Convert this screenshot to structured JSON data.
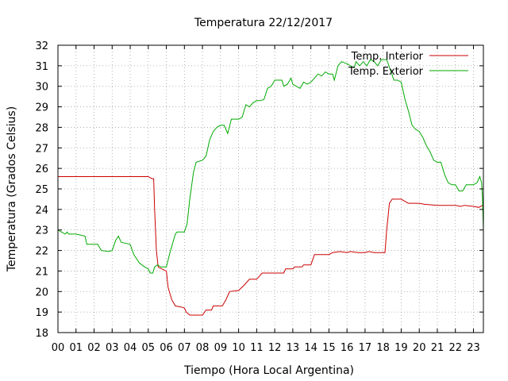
{
  "chart_data": {
    "type": "line",
    "title": "Temperatura 22/12/2017",
    "xlabel": "Tiempo (Hora Local Argentina)",
    "ylabel": "Temperatura (Grados Celsius)",
    "xlim": [
      0,
      23.55
    ],
    "ylim": [
      18,
      32
    ],
    "grid": true,
    "legend_position": "top-right",
    "x_ticks": [
      {
        "value": 0,
        "label": "00"
      },
      {
        "value": 1,
        "label": "01"
      },
      {
        "value": 2,
        "label": "02"
      },
      {
        "value": 3,
        "label": "03"
      },
      {
        "value": 4,
        "label": "04"
      },
      {
        "value": 5,
        "label": "05"
      },
      {
        "value": 6,
        "label": "06"
      },
      {
        "value": 7,
        "label": "07"
      },
      {
        "value": 8,
        "label": "08"
      },
      {
        "value": 9,
        "label": "09"
      },
      {
        "value": 10,
        "label": "10"
      },
      {
        "value": 11,
        "label": "11"
      },
      {
        "value": 12,
        "label": "12"
      },
      {
        "value": 13,
        "label": "13"
      },
      {
        "value": 14,
        "label": "14"
      },
      {
        "value": 15,
        "label": "15"
      },
      {
        "value": 16,
        "label": "16"
      },
      {
        "value": 17,
        "label": "17"
      },
      {
        "value": 18,
        "label": "18"
      },
      {
        "value": 19,
        "label": "19"
      },
      {
        "value": 20,
        "label": "20"
      },
      {
        "value": 21,
        "label": "21"
      },
      {
        "value": 22,
        "label": "22"
      },
      {
        "value": 23,
        "label": "23"
      }
    ],
    "y_ticks": [
      {
        "value": 18,
        "label": "18"
      },
      {
        "value": 19,
        "label": "19"
      },
      {
        "value": 20,
        "label": "20"
      },
      {
        "value": 21,
        "label": "21"
      },
      {
        "value": 22,
        "label": "22"
      },
      {
        "value": 23,
        "label": "23"
      },
      {
        "value": 24,
        "label": "24"
      },
      {
        "value": 25,
        "label": "25"
      },
      {
        "value": 26,
        "label": "26"
      },
      {
        "value": 27,
        "label": "27"
      },
      {
        "value": 28,
        "label": "28"
      },
      {
        "value": 29,
        "label": "29"
      },
      {
        "value": 30,
        "label": "30"
      },
      {
        "value": 31,
        "label": "31"
      },
      {
        "value": 32,
        "label": "32"
      }
    ],
    "series": [
      {
        "name": "Temp. Interior",
        "color": "#cc0000",
        "points": [
          [
            0,
            25.6
          ],
          [
            2,
            25.6
          ],
          [
            4,
            25.6
          ],
          [
            5.0,
            25.6
          ],
          [
            5.2,
            25.5
          ],
          [
            5.3,
            25.5
          ],
          [
            5.35,
            24.0
          ],
          [
            5.45,
            22.0
          ],
          [
            5.55,
            21.2
          ],
          [
            5.75,
            21.1
          ],
          [
            6.0,
            21.0
          ],
          [
            6.1,
            20.2
          ],
          [
            6.3,
            19.6
          ],
          [
            6.5,
            19.3
          ],
          [
            6.8,
            19.25
          ],
          [
            7.0,
            19.2
          ],
          [
            7.1,
            19.0
          ],
          [
            7.3,
            18.85
          ],
          [
            7.6,
            18.85
          ],
          [
            8.0,
            18.85
          ],
          [
            8.2,
            19.1
          ],
          [
            8.5,
            19.1
          ],
          [
            8.6,
            19.3
          ],
          [
            9.1,
            19.3
          ],
          [
            9.3,
            19.6
          ],
          [
            9.5,
            20.0
          ],
          [
            10.0,
            20.05
          ],
          [
            10.3,
            20.3
          ],
          [
            10.6,
            20.6
          ],
          [
            11.0,
            20.6
          ],
          [
            11.3,
            20.9
          ],
          [
            12.0,
            20.9
          ],
          [
            12.5,
            20.9
          ],
          [
            12.6,
            21.1
          ],
          [
            13.0,
            21.1
          ],
          [
            13.1,
            21.2
          ],
          [
            13.5,
            21.2
          ],
          [
            13.6,
            21.3
          ],
          [
            14.0,
            21.3
          ],
          [
            14.2,
            21.8
          ],
          [
            15.0,
            21.8
          ],
          [
            15.2,
            21.9
          ],
          [
            15.6,
            21.95
          ],
          [
            16.0,
            21.9
          ],
          [
            16.2,
            21.95
          ],
          [
            16.6,
            21.9
          ],
          [
            17.0,
            21.9
          ],
          [
            17.2,
            21.95
          ],
          [
            17.5,
            21.9
          ],
          [
            18.0,
            21.9
          ],
          [
            18.1,
            21.9
          ],
          [
            18.2,
            23.0
          ],
          [
            18.35,
            24.3
          ],
          [
            18.5,
            24.5
          ],
          [
            19.0,
            24.5
          ],
          [
            19.2,
            24.4
          ],
          [
            19.4,
            24.3
          ],
          [
            20.0,
            24.3
          ],
          [
            20.3,
            24.25
          ],
          [
            21.0,
            24.2
          ],
          [
            21.5,
            24.2
          ],
          [
            22.0,
            24.2
          ],
          [
            22.3,
            24.15
          ],
          [
            22.5,
            24.2
          ],
          [
            23.0,
            24.15
          ],
          [
            23.3,
            24.1
          ],
          [
            23.5,
            24.2
          ]
        ]
      },
      {
        "name": "Temp. Exterior",
        "color": "#00aa00",
        "points": [
          [
            0,
            23.0
          ],
          [
            0.2,
            22.9
          ],
          [
            0.4,
            22.8
          ],
          [
            0.5,
            22.9
          ],
          [
            0.6,
            22.8
          ],
          [
            1.0,
            22.8
          ],
          [
            1.5,
            22.7
          ],
          [
            1.6,
            22.3
          ],
          [
            2.0,
            22.3
          ],
          [
            2.2,
            22.3
          ],
          [
            2.4,
            22.0
          ],
          [
            2.8,
            21.95
          ],
          [
            3.0,
            22.0
          ],
          [
            3.2,
            22.5
          ],
          [
            3.35,
            22.7
          ],
          [
            3.5,
            22.4
          ],
          [
            4.0,
            22.3
          ],
          [
            4.2,
            21.8
          ],
          [
            4.5,
            21.4
          ],
          [
            4.8,
            21.2
          ],
          [
            5.0,
            21.1
          ],
          [
            5.1,
            20.9
          ],
          [
            5.25,
            20.9
          ],
          [
            5.35,
            21.2
          ],
          [
            5.5,
            21.3
          ],
          [
            5.7,
            21.2
          ],
          [
            6.0,
            21.2
          ],
          [
            6.2,
            21.9
          ],
          [
            6.5,
            22.8
          ],
          [
            6.6,
            22.9
          ],
          [
            7.0,
            22.9
          ],
          [
            7.15,
            23.3
          ],
          [
            7.3,
            24.5
          ],
          [
            7.5,
            25.8
          ],
          [
            7.65,
            26.3
          ],
          [
            8.0,
            26.4
          ],
          [
            8.2,
            26.6
          ],
          [
            8.4,
            27.4
          ],
          [
            8.6,
            27.8
          ],
          [
            8.8,
            28.0
          ],
          [
            9.0,
            28.1
          ],
          [
            9.2,
            28.1
          ],
          [
            9.4,
            27.7
          ],
          [
            9.6,
            28.4
          ],
          [
            10.0,
            28.4
          ],
          [
            10.2,
            28.5
          ],
          [
            10.4,
            29.1
          ],
          [
            10.6,
            29.0
          ],
          [
            10.8,
            29.2
          ],
          [
            11.0,
            29.3
          ],
          [
            11.2,
            29.3
          ],
          [
            11.4,
            29.35
          ],
          [
            11.6,
            29.9
          ],
          [
            11.8,
            30.0
          ],
          [
            12.0,
            30.3
          ],
          [
            12.2,
            30.3
          ],
          [
            12.4,
            30.3
          ],
          [
            12.5,
            30.0
          ],
          [
            12.7,
            30.1
          ],
          [
            12.9,
            30.4
          ],
          [
            13.0,
            30.1
          ],
          [
            13.2,
            30.0
          ],
          [
            13.4,
            29.9
          ],
          [
            13.6,
            30.2
          ],
          [
            13.8,
            30.1
          ],
          [
            14.0,
            30.2
          ],
          [
            14.2,
            30.4
          ],
          [
            14.4,
            30.6
          ],
          [
            14.6,
            30.5
          ],
          [
            14.8,
            30.7
          ],
          [
            15.0,
            30.6
          ],
          [
            15.2,
            30.6
          ],
          [
            15.3,
            30.3
          ],
          [
            15.5,
            31.0
          ],
          [
            15.7,
            31.2
          ],
          [
            16.0,
            31.1
          ],
          [
            16.2,
            31.0
          ],
          [
            16.4,
            30.9
          ],
          [
            16.5,
            31.2
          ],
          [
            16.7,
            31.0
          ],
          [
            16.9,
            31.2
          ],
          [
            17.1,
            31.0
          ],
          [
            17.3,
            31.3
          ],
          [
            17.5,
            31.2
          ],
          [
            17.7,
            31.0
          ],
          [
            17.9,
            31.3
          ],
          [
            18.0,
            31.3
          ],
          [
            18.2,
            31.3
          ],
          [
            18.4,
            30.8
          ],
          [
            18.6,
            30.3
          ],
          [
            18.8,
            30.3
          ],
          [
            19.0,
            30.2
          ],
          [
            19.2,
            29.4
          ],
          [
            19.4,
            28.8
          ],
          [
            19.6,
            28.1
          ],
          [
            19.8,
            27.9
          ],
          [
            20.0,
            27.8
          ],
          [
            20.2,
            27.5
          ],
          [
            20.4,
            27.1
          ],
          [
            20.6,
            26.8
          ],
          [
            20.8,
            26.4
          ],
          [
            21.0,
            26.3
          ],
          [
            21.2,
            26.3
          ],
          [
            21.4,
            25.7
          ],
          [
            21.6,
            25.3
          ],
          [
            21.8,
            25.2
          ],
          [
            22.0,
            25.2
          ],
          [
            22.2,
            24.9
          ],
          [
            22.4,
            24.9
          ],
          [
            22.6,
            25.2
          ],
          [
            22.8,
            25.2
          ],
          [
            23.0,
            25.2
          ],
          [
            23.2,
            25.3
          ],
          [
            23.35,
            25.6
          ],
          [
            23.45,
            25.3
          ],
          [
            23.5,
            24.5
          ],
          [
            23.55,
            23.0
          ]
        ]
      }
    ]
  }
}
